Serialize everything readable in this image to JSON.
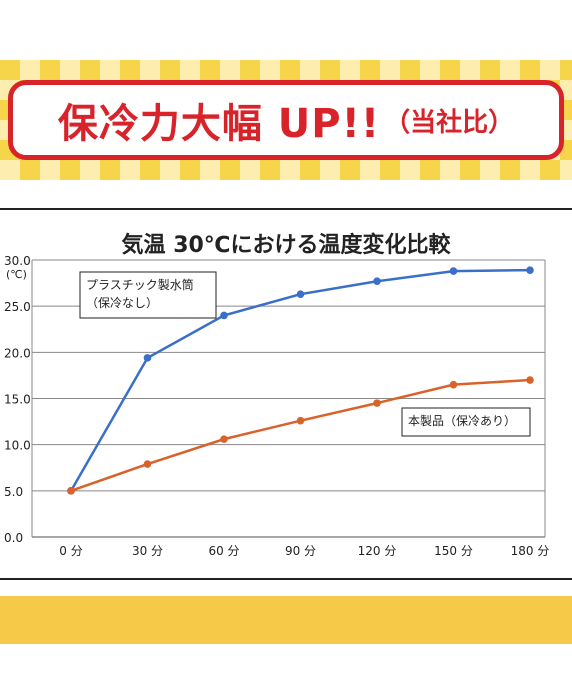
{
  "banner": {
    "main": "保冷力大幅 UP!!",
    "sub": "（当社比）",
    "accent_color": "#d9232b",
    "band_color": "#f7d54a"
  },
  "bottom_band": {
    "color": "#f7c948"
  },
  "chart_data": {
    "type": "line",
    "title": "気温 30℃における温度変化比較",
    "unit_label": "(℃)",
    "categories": [
      "0 分",
      "30 分",
      "60 分",
      "90 分",
      "120 分",
      "150 分",
      "180 分"
    ],
    "y_ticks": [
      "0.0",
      "5.0",
      "10.0",
      "15.0",
      "20.0",
      "25.0",
      "30.0"
    ],
    "ylim": [
      0,
      30
    ],
    "grid": true,
    "series": [
      {
        "name": "プラスチック製水筒\n（保冷なし）",
        "color": "#3a6fc9",
        "values": [
          5.0,
          19.4,
          24.0,
          26.3,
          27.7,
          28.8,
          28.9
        ]
      },
      {
        "name": "本製品（保冷あり）",
        "color": "#d9622b",
        "values": [
          5.0,
          7.9,
          10.6,
          12.6,
          14.5,
          16.5,
          17.0
        ]
      }
    ]
  }
}
